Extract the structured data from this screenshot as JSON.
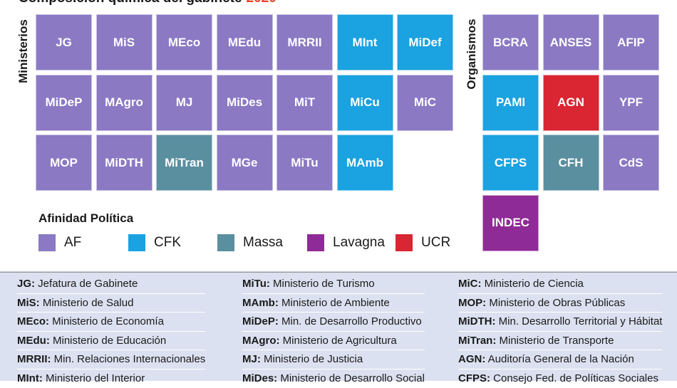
{
  "title": {
    "text": "Composición química del gabinete",
    "year": "2020"
  },
  "sections": {
    "ministerios": "Ministerios",
    "organismos": "Organismos"
  },
  "colors": {
    "AF": "#8b79c4",
    "CFK": "#1ba2e0",
    "Massa": "#5a8fa0",
    "Lavagna": "#8e2b96",
    "UCR": "#d92632"
  },
  "ministerios": [
    {
      "label": "JG",
      "group": "AF"
    },
    {
      "label": "MiS",
      "group": "AF"
    },
    {
      "label": "MEco",
      "group": "AF"
    },
    {
      "label": "MEdu",
      "group": "AF"
    },
    {
      "label": "MRRII",
      "group": "AF"
    },
    {
      "label": "MInt",
      "group": "CFK"
    },
    {
      "label": "MiDef",
      "group": "CFK"
    },
    {
      "label": "MiDeP",
      "group": "AF"
    },
    {
      "label": "MAgro",
      "group": "AF"
    },
    {
      "label": "MJ",
      "group": "AF"
    },
    {
      "label": "MiDes",
      "group": "AF"
    },
    {
      "label": "MiT",
      "group": "AF"
    },
    {
      "label": "MiCu",
      "group": "CFK"
    },
    {
      "label": "MiC",
      "group": "AF"
    },
    {
      "label": "MOP",
      "group": "AF"
    },
    {
      "label": "MiDTH",
      "group": "AF"
    },
    {
      "label": "MiTran",
      "group": "Massa"
    },
    {
      "label": "MGe",
      "group": "AF"
    },
    {
      "label": "MiTu",
      "group": "AF"
    },
    {
      "label": "MAmb",
      "group": "CFK"
    }
  ],
  "organismos": [
    {
      "label": "BCRA",
      "group": "AF"
    },
    {
      "label": "ANSES",
      "group": "AF"
    },
    {
      "label": "AFIP",
      "group": "AF"
    },
    {
      "label": "PAMI",
      "group": "CFK"
    },
    {
      "label": "AGN",
      "group": "UCR"
    },
    {
      "label": "YPF",
      "group": "AF"
    },
    {
      "label": "CFPS",
      "group": "CFK"
    },
    {
      "label": "CFH",
      "group": "Massa"
    },
    {
      "label": "CdS",
      "group": "AF"
    },
    {
      "label": "INDEC",
      "group": "Lavagna"
    }
  ],
  "legend": {
    "title": "Afinidad Política",
    "items": [
      {
        "key": "AF",
        "label": "AF"
      },
      {
        "key": "CFK",
        "label": "CFK"
      },
      {
        "key": "Massa",
        "label": "Massa"
      },
      {
        "key": "Lavagna",
        "label": "Lavagna"
      },
      {
        "key": "UCR",
        "label": "UCR"
      }
    ]
  },
  "glossary": [
    [
      {
        "abbr": "JG:",
        "text": " Jefatura de Gabinete"
      },
      {
        "abbr": "MiS:",
        "text": " Ministerio de Salud"
      },
      {
        "abbr": "MEco:",
        "text": " Ministerio de Economía"
      },
      {
        "abbr": "MEdu:",
        "text": " Ministerio de Educación"
      },
      {
        "abbr": "MRRII:",
        "text": " Min. Relaciones Internacionales"
      },
      {
        "abbr": "MInt:",
        "text": " Ministerio del Interior"
      }
    ],
    [
      {
        "abbr": "MiTu:",
        "text": " Ministerio de Turismo"
      },
      {
        "abbr": "MAmb:",
        "text": " Ministerio de Ambiente"
      },
      {
        "abbr": "MiDeP:",
        "text": " Min. de Desarrollo Productivo"
      },
      {
        "abbr": "MAgro:",
        "text": " Ministerio de Agricultura"
      },
      {
        "abbr": "MJ:",
        "text": " Ministerio de Justicia"
      },
      {
        "abbr": "MiDes:",
        "text": " Ministerio de Desarrollo Social"
      }
    ],
    [
      {
        "abbr": "MiC:",
        "text": " Ministerio de Ciencia"
      },
      {
        "abbr": "MOP:",
        "text": " Ministerio de Obras Públicas"
      },
      {
        "abbr": "MiDTH:",
        "text": " Min. Desarrollo Territorial y Hábitat"
      },
      {
        "abbr": "MiTran:",
        "text": " Ministerio de Transporte"
      },
      {
        "abbr": "AGN:",
        "text": " Auditoría General de la Nación"
      },
      {
        "abbr": "CFPS:",
        "text": " Consejo Fed. de Políticas Sociales"
      }
    ]
  ]
}
